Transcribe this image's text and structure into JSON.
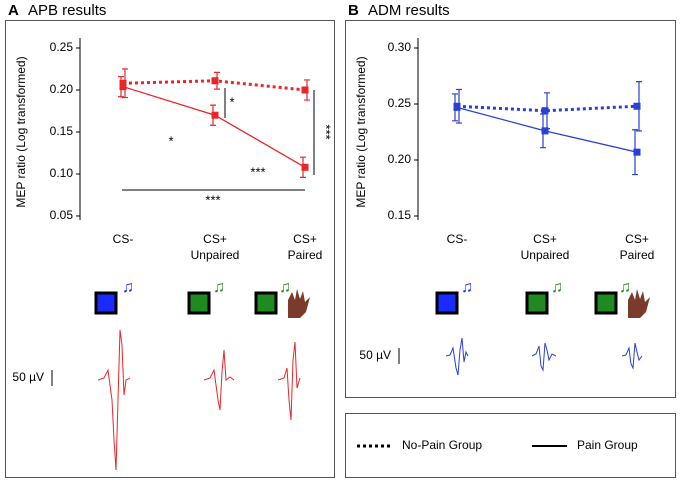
{
  "chart_data": [
    {
      "type": "line",
      "panel_label": "A",
      "title": "APB results",
      "y_label": "MEP ratio (Log transformed)",
      "categories": [
        "CS-",
        "CS+\nUnpaired",
        "CS+\nPaired"
      ],
      "ylim": [
        0.05,
        0.25
      ],
      "yticks": [
        0.05,
        {
          "value": 0.1,
          "label": "0.10"
        },
        0.15,
        {
          "value": 0.2,
          "label": "0.20"
        },
        0.25
      ],
      "grid": false,
      "series": [
        {
          "name": "No-Pain Group",
          "color": "#e8262a",
          "line_style": "dotted",
          "values": [
            0.208,
            0.211,
            0.2
          ],
          "errors": [
            0.017,
            0.01,
            0.012
          ]
        },
        {
          "name": "Pain Group",
          "color": "#e8262a",
          "line_style": "solid",
          "values": [
            0.204,
            0.17,
            0.108
          ],
          "errors": [
            0.012,
            0.012,
            0.012
          ]
        }
      ],
      "annotations": [
        "*",
        "*",
        "***",
        "***",
        "***"
      ],
      "scale_bar": "50 µV"
    },
    {
      "type": "line",
      "panel_label": "B",
      "title": "ADM results",
      "y_label": "MEP ratio (Log transformed)",
      "categories": [
        "CS-",
        "CS+\nUnpaired",
        "CS+\nPaired"
      ],
      "ylim": [
        0.15,
        0.3
      ],
      "yticks": [
        0.15,
        {
          "value": 0.2,
          "label": "0.20"
        },
        0.25,
        {
          "value": 0.3,
          "label": "0.30"
        }
      ],
      "grid": false,
      "series": [
        {
          "color": "#2a3fd6",
          "line_style": "dotted",
          "values": [
            0.248,
            0.244,
            0.248
          ],
          "errors": [
            0.015,
            0.016,
            0.022
          ]
        },
        {
          "color": "#2a3fd6",
          "line_style": "solid",
          "values": [
            0.247,
            0.226,
            0.207
          ],
          "errors": [
            0.012,
            0.015,
            0.02
          ]
        }
      ],
      "scale_bar": "50 µV"
    }
  ]
}
